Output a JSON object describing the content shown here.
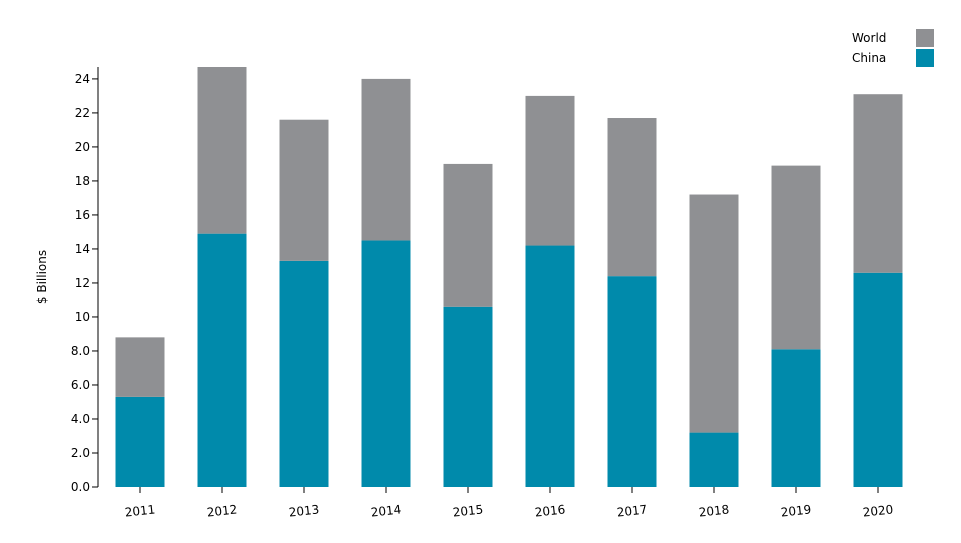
{
  "chart_data": {
    "type": "bar",
    "stacked": true,
    "categories": [
      "2011",
      "2012",
      "2013",
      "2014",
      "2015",
      "2016",
      "2017",
      "2018",
      "2019",
      "2020"
    ],
    "series": [
      {
        "name": "China",
        "color": "#008aab",
        "values": [
          5.3,
          14.9,
          13.3,
          14.5,
          10.6,
          14.2,
          12.4,
          3.2,
          8.1,
          12.6
        ]
      },
      {
        "name": "World",
        "color": "#8f9093",
        "values": [
          3.5,
          9.8,
          8.3,
          9.5,
          8.4,
          8.8,
          9.3,
          14.0,
          10.8,
          10.5
        ]
      }
    ],
    "totals": [
      8.8,
      24.7,
      21.6,
      24.0,
      19.0,
      23.0,
      21.7,
      17.2,
      18.9,
      23.1
    ],
    "ylabel": "$ Billions",
    "xlabel": "",
    "ylim": [
      0,
      24.7
    ],
    "yticks": [
      0,
      2,
      4,
      6,
      8,
      10,
      12,
      14,
      16,
      18,
      20,
      22,
      24
    ],
    "ytick_labels": [
      "0.0",
      "2.0",
      "4.0",
      "6.0",
      "8.0",
      "10",
      "12",
      "14",
      "16",
      "18",
      "20",
      "22",
      "24"
    ],
    "grid": false,
    "legend": {
      "position": "top-right",
      "entries": [
        "World",
        "China"
      ]
    }
  }
}
